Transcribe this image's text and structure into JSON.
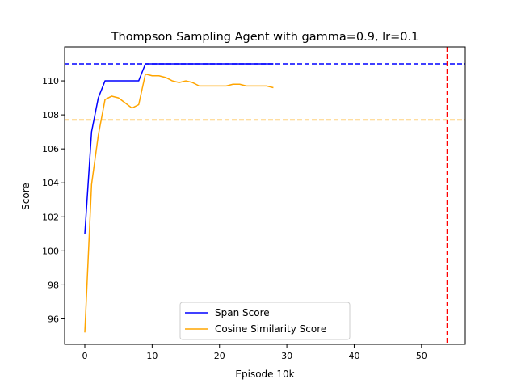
{
  "chart_data": {
    "type": "line",
    "title": "Thompson Sampling Agent with gamma=0.9, lr=0.1",
    "xlabel": "Episode 10k",
    "ylabel": "Score",
    "xlim": [
      -3,
      56.5
    ],
    "ylim": [
      94.5,
      112.0
    ],
    "xticks": [
      0,
      10,
      20,
      30,
      40,
      50
    ],
    "yticks": [
      96,
      98,
      100,
      102,
      104,
      106,
      108,
      110
    ],
    "grid": false,
    "legend_position": "lower center",
    "series": [
      {
        "name": "Span Score",
        "color": "#0000ff",
        "x": [
          0,
          1,
          2,
          3,
          4,
          5,
          6,
          7,
          8,
          9,
          10,
          11,
          12,
          13,
          14,
          15,
          16,
          17,
          18,
          19,
          20,
          21,
          22,
          23,
          24,
          25,
          26,
          27,
          28
        ],
        "y": [
          101.0,
          107.0,
          109.0,
          110.0,
          110.0,
          110.0,
          110.0,
          110.0,
          110.0,
          111.0,
          111.0,
          111.0,
          111.0,
          111.0,
          111.0,
          111.0,
          111.0,
          111.0,
          111.0,
          111.0,
          111.0,
          111.0,
          111.0,
          111.0,
          111.0,
          111.0,
          111.0,
          111.0,
          111.0
        ]
      },
      {
        "name": "Cosine Similarity Score",
        "color": "#ffa500",
        "x": [
          0,
          1,
          2,
          3,
          4,
          5,
          6,
          7,
          8,
          9,
          10,
          11,
          12,
          13,
          14,
          15,
          16,
          17,
          18,
          19,
          20,
          21,
          22,
          23,
          24,
          25,
          26,
          27,
          28
        ],
        "y": [
          95.2,
          103.9,
          106.8,
          108.9,
          109.1,
          109.0,
          108.7,
          108.4,
          108.6,
          110.4,
          110.3,
          110.3,
          110.2,
          110.0,
          109.9,
          110.0,
          109.9,
          109.7,
          109.7,
          109.7,
          109.7,
          109.7,
          109.8,
          109.8,
          109.7,
          109.7,
          109.7,
          109.7,
          109.6
        ]
      }
    ],
    "reference_lines": [
      {
        "orientation": "horizontal",
        "value": 111.0,
        "color": "#0000ff",
        "style": "dashed"
      },
      {
        "orientation": "horizontal",
        "value": 107.7,
        "color": "#ffa500",
        "style": "dashed"
      },
      {
        "orientation": "vertical",
        "value": 53.8,
        "color": "#ff0000",
        "style": "dashed"
      }
    ]
  }
}
